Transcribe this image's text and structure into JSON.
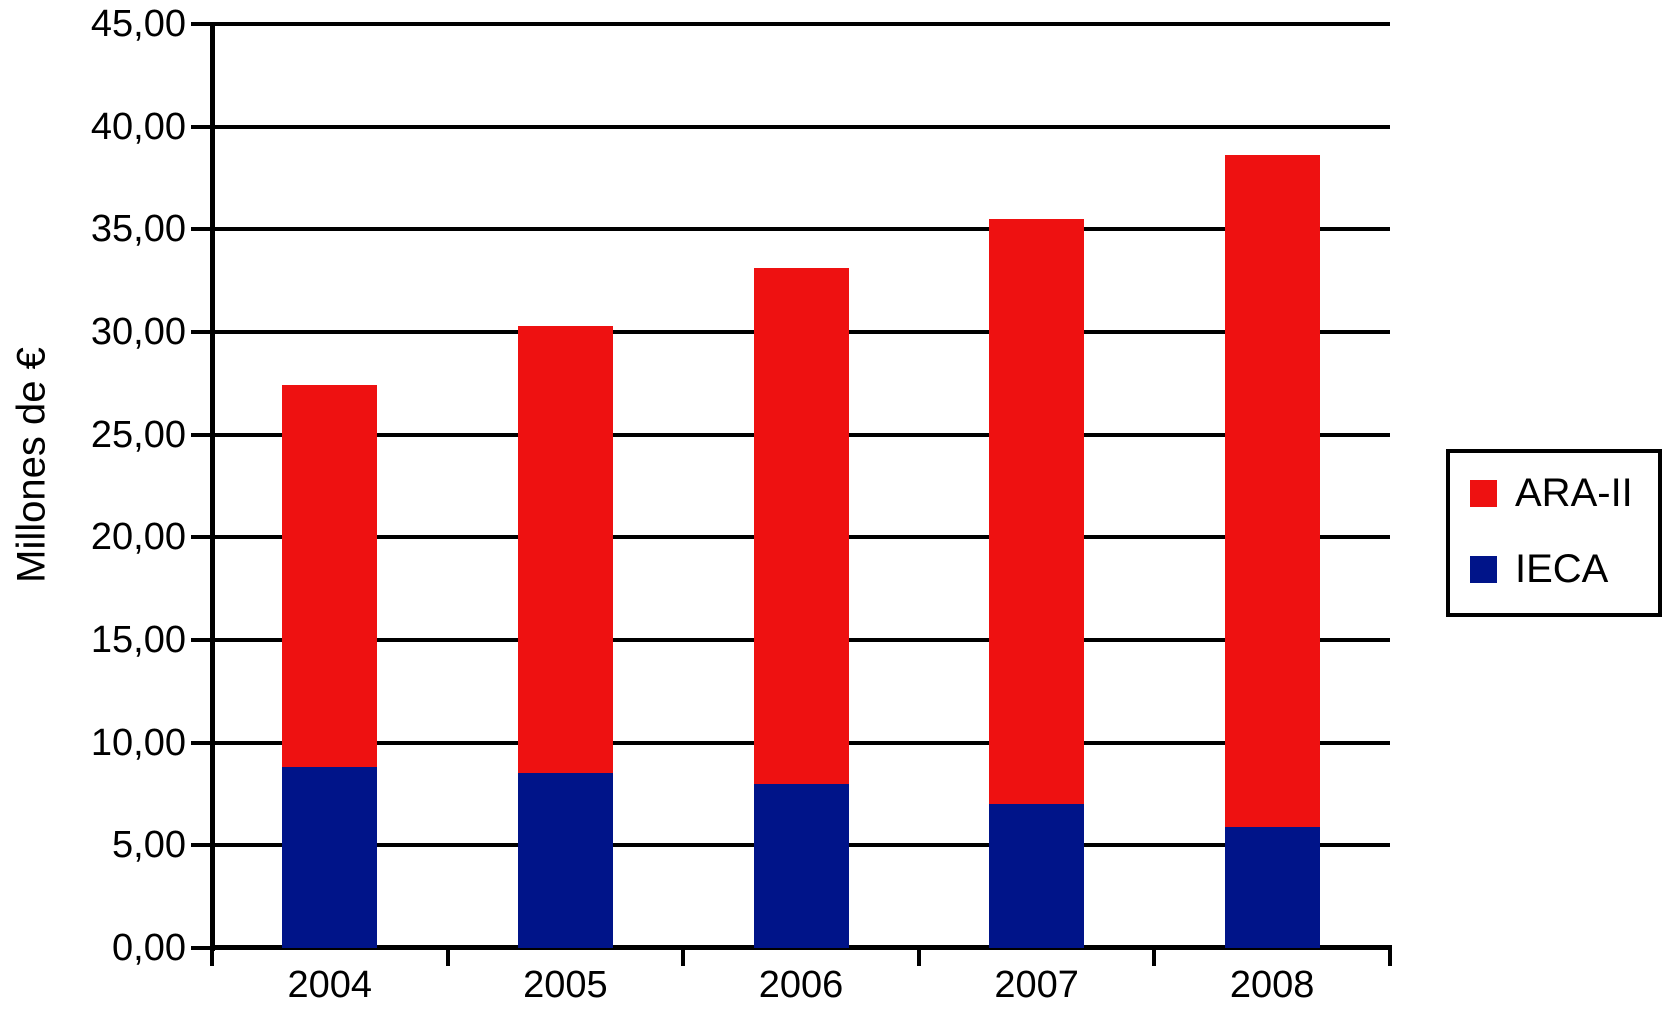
{
  "chart_data": {
    "type": "bar",
    "stacked": true,
    "title": "",
    "xlabel": "",
    "ylabel": "Millones de €",
    "categories": [
      "2004",
      "2005",
      "2006",
      "2007",
      "2008"
    ],
    "series": [
      {
        "name": "IECA",
        "color": "#001489",
        "values": [
          8.8,
          8.5,
          8.0,
          7.0,
          5.9
        ]
      },
      {
        "name": "ARA-II",
        "color": "#EE1111",
        "values": [
          18.6,
          21.8,
          25.1,
          28.5,
          32.7
        ]
      }
    ],
    "totals": [
      27.4,
      30.3,
      33.1,
      35.5,
      38.6
    ],
    "ylim": [
      0,
      45
    ],
    "ytick_step": 5,
    "ytick_labels": [
      "0,00",
      "5,00",
      "10,00",
      "15,00",
      "20,00",
      "25,00",
      "30,00",
      "35,00",
      "40,00",
      "45,00"
    ],
    "grid": true,
    "axis_color": "#000000",
    "background_color": "#ffffff",
    "legend_position": "right",
    "legend": [
      {
        "label": "ARA-II",
        "color": "#EE1111"
      },
      {
        "label": "IECA",
        "color": "#001489"
      }
    ]
  }
}
